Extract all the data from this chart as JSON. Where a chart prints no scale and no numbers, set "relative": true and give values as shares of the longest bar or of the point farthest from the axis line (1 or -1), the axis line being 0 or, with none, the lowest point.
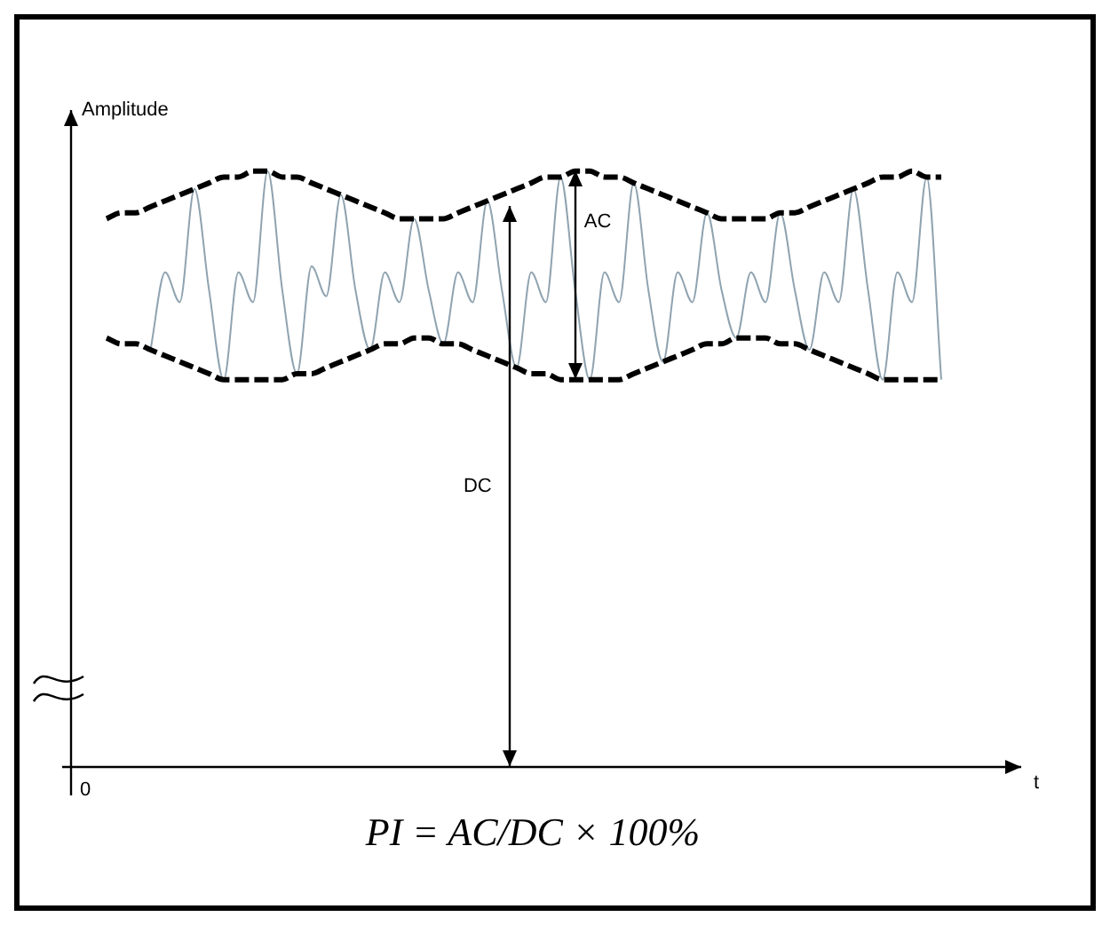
{
  "chart_data": {
    "type": "line",
    "relative": true,
    "tick_labels": false,
    "marker": "none",
    "xlabel": "t",
    "ylabel": "Amplitude",
    "annotations": [
      "AC",
      "DC",
      "0",
      "PI = AC/DC × 100%"
    ],
    "categories": [
      null,
      null,
      null,
      null,
      null,
      null,
      null,
      null,
      null,
      null,
      null,
      null,
      null,
      null,
      null,
      null,
      null,
      null,
      null,
      null,
      null,
      null,
      null,
      null,
      null,
      null,
      null,
      null,
      null,
      null,
      null,
      null,
      null,
      null,
      null,
      null,
      null,
      null,
      null,
      null,
      null,
      null,
      null,
      null,
      null,
      null,
      null,
      null,
      null,
      null,
      null,
      null,
      null,
      null,
      null,
      null,
      null,
      null
    ],
    "series": [
      {
        "color": "#8fa3b0",
        "line_style": "solid",
        "values": [
          null,
          null,
          null,
          0.7,
          0.83,
          0.78,
          0.97,
          0.8,
          0.65,
          0.83,
          0.78,
          1.0,
          0.8,
          0.66,
          0.84,
          0.79,
          0.96,
          0.8,
          0.7,
          0.83,
          0.78,
          0.92,
          0.8,
          0.71,
          0.83,
          0.78,
          0.95,
          0.8,
          0.67,
          0.83,
          0.78,
          0.99,
          0.8,
          0.65,
          0.83,
          0.78,
          0.98,
          0.8,
          0.68,
          0.83,
          0.78,
          0.93,
          0.8,
          0.72,
          0.83,
          0.78,
          0.93,
          0.8,
          0.7,
          0.83,
          0.78,
          0.97,
          0.8,
          0.65,
          0.83,
          0.78,
          0.99,
          0.65
        ]
      },
      {
        "color": "#000000",
        "line_style": "dashed",
        "values": [
          0.92,
          0.93,
          0.93,
          0.94,
          0.95,
          0.96,
          0.97,
          0.98,
          0.99,
          0.99,
          1.0,
          1.0,
          0.99,
          0.99,
          0.98,
          0.97,
          0.96,
          0.95,
          0.94,
          0.93,
          0.92,
          0.92,
          0.92,
          0.92,
          0.93,
          0.94,
          0.95,
          0.96,
          0.97,
          0.98,
          0.99,
          0.99,
          1.0,
          1.0,
          0.99,
          0.99,
          0.98,
          0.97,
          0.96,
          0.95,
          0.94,
          0.93,
          0.92,
          0.92,
          0.92,
          0.92,
          0.93,
          0.93,
          0.94,
          0.95,
          0.96,
          0.97,
          0.98,
          0.99,
          0.99,
          1.0,
          0.99,
          0.99
        ]
      },
      {
        "color": "#000000",
        "line_style": "dashed",
        "values": [
          0.72,
          0.71,
          0.71,
          0.7,
          0.69,
          0.68,
          0.67,
          0.66,
          0.65,
          0.65,
          0.65,
          0.65,
          0.65,
          0.66,
          0.66,
          0.67,
          0.68,
          0.69,
          0.7,
          0.71,
          0.71,
          0.72,
          0.72,
          0.71,
          0.71,
          0.7,
          0.69,
          0.68,
          0.67,
          0.66,
          0.66,
          0.65,
          0.65,
          0.65,
          0.65,
          0.65,
          0.66,
          0.67,
          0.68,
          0.69,
          0.7,
          0.71,
          0.71,
          0.72,
          0.72,
          0.72,
          0.71,
          0.71,
          0.7,
          0.69,
          0.68,
          0.67,
          0.66,
          0.65,
          0.65,
          0.65,
          0.65,
          0.65
        ]
      }
    ]
  }
}
